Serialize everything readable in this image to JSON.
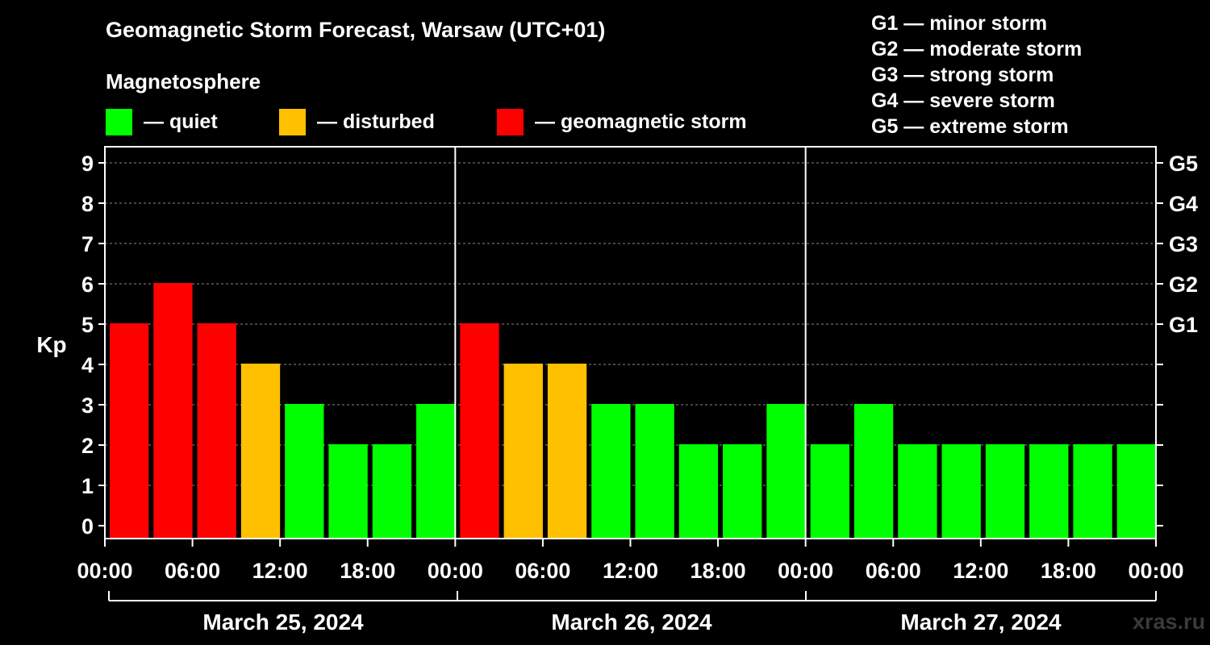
{
  "chart_data": {
    "type": "bar",
    "title": "Geomagnetic Storm Forecast, Warsaw (UTC+01)",
    "subtitle": "Magnetosphere",
    "ylabel": "Kp",
    "ylim": [
      0,
      9
    ],
    "yticks": [
      "0",
      "1",
      "2",
      "3",
      "4",
      "5",
      "6",
      "7",
      "8",
      "9"
    ],
    "right_ticks": [
      {
        "kp": 5,
        "label": "G1"
      },
      {
        "kp": 6,
        "label": "G2"
      },
      {
        "kp": 7,
        "label": "G3"
      },
      {
        "kp": 8,
        "label": "G4"
      },
      {
        "kp": 9,
        "label": "G5"
      }
    ],
    "xticks": [
      "00:00",
      "06:00",
      "12:00",
      "18:00",
      "00:00",
      "06:00",
      "12:00",
      "18:00",
      "00:00",
      "06:00",
      "12:00",
      "18:00",
      "00:00"
    ],
    "days": [
      "March 25, 2024",
      "March 26, 2024",
      "March 27, 2024"
    ],
    "interval_hours": 3,
    "values": [
      5,
      6,
      5,
      4,
      3,
      2,
      2,
      3,
      5,
      4,
      4,
      3,
      3,
      2,
      2,
      3,
      2,
      3,
      2,
      2,
      2,
      2,
      2,
      2
    ],
    "grid": true,
    "legend": [
      {
        "label": "— quiet",
        "color": "#00ff00",
        "range": "Kp < 4"
      },
      {
        "label": "— disturbed",
        "color": "#ffc000",
        "range": "Kp = 4"
      },
      {
        "label": "— geomagnetic storm",
        "color": "#ff0000",
        "range": "Kp ≥ 5"
      }
    ],
    "storm_levels": [
      "G1 — minor storm",
      "G2 — moderate storm",
      "G3 — strong storm",
      "G4 — severe storm",
      "G5 — extreme storm"
    ]
  },
  "watermark": "xras.ru"
}
